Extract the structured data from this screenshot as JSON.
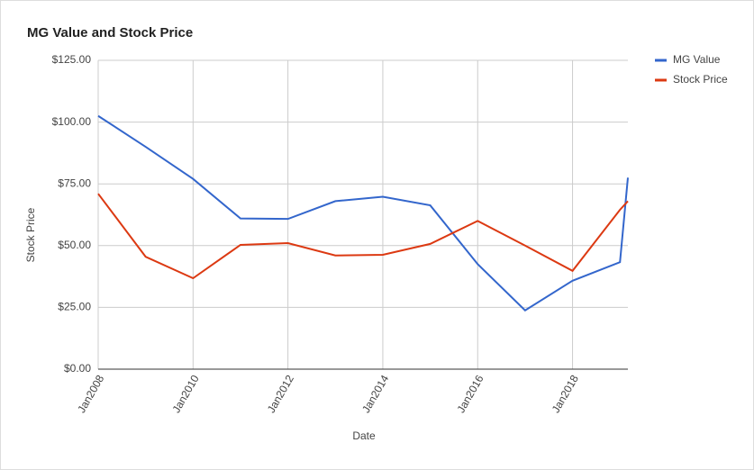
{
  "chart_data": {
    "type": "line",
    "title": "MG Value and Stock Price",
    "x_label": "Date",
    "y_label": "Stock Price",
    "x": [
      "2008-01",
      "2009-01",
      "2010-01",
      "2011-01",
      "2012-01",
      "2013-01",
      "2014-01",
      "2015-01",
      "2016-01",
      "2017-01",
      "2018-01",
      "2019-01",
      "2019-03"
    ],
    "series": [
      {
        "name": "MG Value",
        "color": "#3366cc",
        "values": [
          102.5,
          90,
          77,
          61,
          60.8,
          68,
          69.8,
          66.3,
          42.5,
          23.8,
          35.8,
          43.3,
          77.5
        ]
      },
      {
        "name": "Stock Price",
        "color": "#dc3912",
        "values": [
          71,
          45.5,
          36.8,
          50.3,
          51,
          46,
          46.3,
          50.7,
          60,
          50,
          39.8,
          64.5,
          68
        ]
      }
    ],
    "xlim": [
      "2008-01",
      "2019-03"
    ],
    "xticks": [
      {
        "value": "2008-01",
        "label": "Jan2008"
      },
      {
        "value": "2010-01",
        "label": "Jan2010"
      },
      {
        "value": "2012-01",
        "label": "Jan2012"
      },
      {
        "value": "2014-01",
        "label": "Jan2014"
      },
      {
        "value": "2016-01",
        "label": "Jan2016"
      },
      {
        "value": "2018-01",
        "label": "Jan2018"
      }
    ],
    "ylim": [
      0,
      125
    ],
    "yticks": [
      {
        "value": 0,
        "label": "$0.00"
      },
      {
        "value": 25,
        "label": "$25.00"
      },
      {
        "value": 50,
        "label": "$50.00"
      },
      {
        "value": 75,
        "label": "$75.00"
      },
      {
        "value": 100,
        "label": "$100.00"
      },
      {
        "value": 125,
        "label": "$125.00"
      }
    ],
    "grid": true,
    "legend": "right"
  }
}
